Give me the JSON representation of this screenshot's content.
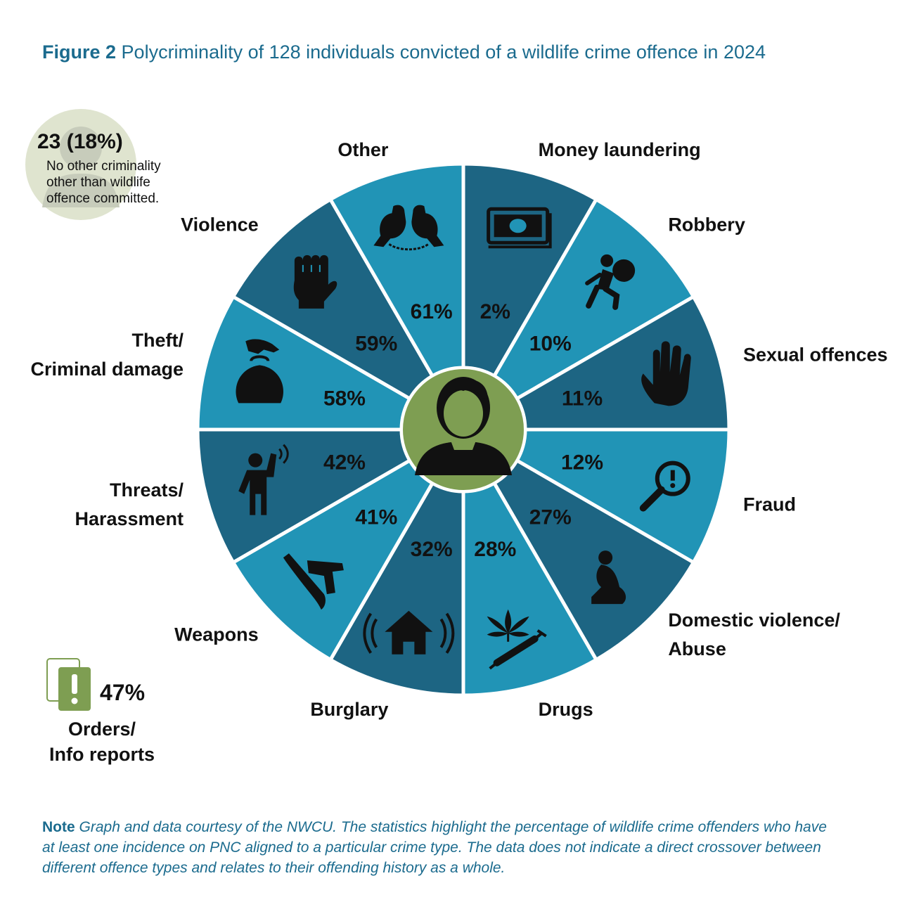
{
  "title": {
    "figure": "Figure 2",
    "text": "Polycriminality of 128 individuals convicted of a wildlife crime offence in 2024"
  },
  "no_other": {
    "value": "23 (18%)",
    "text": "No other criminality other than wildlife offence committed."
  },
  "orders": {
    "value": "47%",
    "label_line1": "Orders/",
    "label_line2": "Info reports"
  },
  "note": {
    "label": "Note",
    "text": "Graph and data courtesy of the NWCU. The statistics highlight the percentage of wildlife crime offenders who have at least one incidence on PNC aligned to a particular crime type. The data does not indicate a direct crossover between different offence types and relates to their offending history as a whole."
  },
  "colors": {
    "dark_teal": "#1d6583",
    "light_teal": "#2194b6",
    "center_green": "#7e9e52",
    "icon_green": "#7e9e52",
    "title_blue": "#1b6b8e"
  },
  "chart_data": {
    "type": "pie",
    "unit": "%",
    "segments": [
      {
        "label": [
          "Money laundering"
        ],
        "value": 2,
        "value_label": "2%",
        "icon": "money-icon"
      },
      {
        "label": [
          "Robbery"
        ],
        "value": 10,
        "value_label": "10%",
        "icon": "robber-icon"
      },
      {
        "label": [
          "Sexual offences"
        ],
        "value": 11,
        "value_label": "11%",
        "icon": "hand-icon"
      },
      {
        "label": [
          "Fraud"
        ],
        "value": 12,
        "value_label": "12%",
        "icon": "magnifier-icon"
      },
      {
        "label": [
          "Domestic violence/",
          "Abuse"
        ],
        "value": 27,
        "value_label": "27%",
        "icon": "crouching-person-icon"
      },
      {
        "label": [
          "Drugs"
        ],
        "value": 28,
        "value_label": "28%",
        "icon": "cannabis-syringe-icon"
      },
      {
        "label": [
          "Burglary"
        ],
        "value": 32,
        "value_label": "32%",
        "icon": "house-alarm-icon"
      },
      {
        "label": [
          "Weapons"
        ],
        "value": 41,
        "value_label": "41%",
        "icon": "knife-gun-icon"
      },
      {
        "label": [
          "Threats/",
          "Harassment"
        ],
        "value": 42,
        "value_label": "42%",
        "icon": "shouting-person-icon"
      },
      {
        "label": [
          "Theft/",
          "Criminal damage"
        ],
        "value": 58,
        "value_label": "58%",
        "icon": "purse-icon"
      },
      {
        "label": [
          "Violence"
        ],
        "value": 59,
        "value_label": "59%",
        "icon": "fist-icon"
      },
      {
        "label": [
          "Other"
        ],
        "value": 61,
        "value_label": "61%",
        "icon": "handcuffs-icon"
      }
    ]
  }
}
